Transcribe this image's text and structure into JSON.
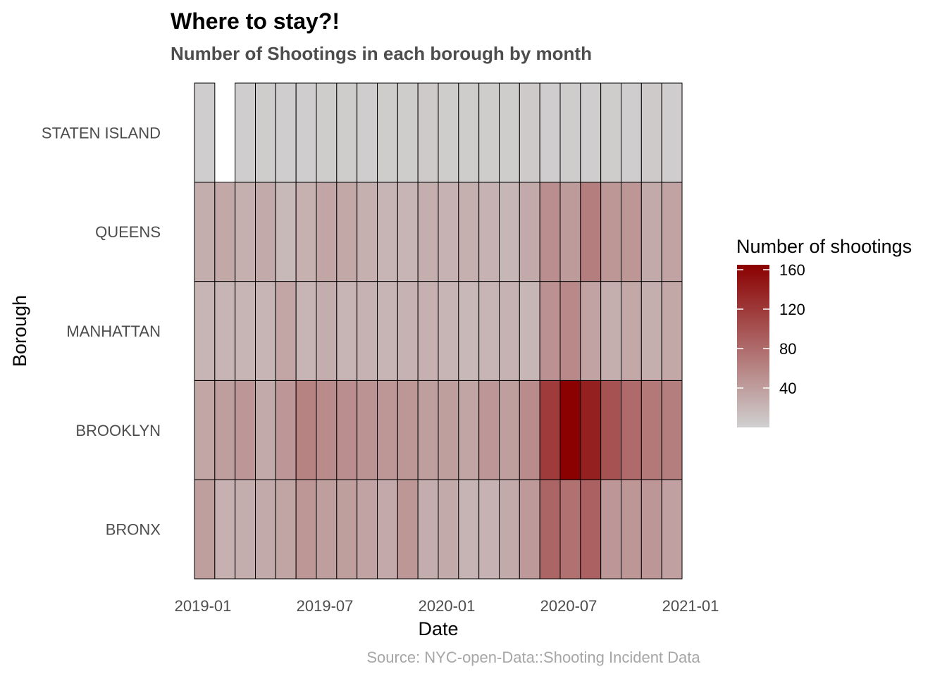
{
  "chart_data": {
    "type": "heatmap",
    "title": "Where to stay?!",
    "subtitle": "Number of Shootings in each borough by month",
    "xlabel": "Date",
    "ylabel": "Borough",
    "caption": "Source: NYC-open-Data::Shooting Incident Data",
    "x": [
      "2019-01",
      "2019-02",
      "2019-03",
      "2019-04",
      "2019-05",
      "2019-06",
      "2019-07",
      "2019-08",
      "2019-09",
      "2019-10",
      "2019-11",
      "2019-12",
      "2020-01",
      "2020-02",
      "2020-03",
      "2020-04",
      "2020-05",
      "2020-06",
      "2020-07",
      "2020-08",
      "2020-09",
      "2020-10",
      "2020-11",
      "2020-12"
    ],
    "x_ticks": [
      "2019-01",
      "2019-07",
      "2020-01",
      "2020-07",
      "2021-01"
    ],
    "y": [
      "BRONX",
      "BROOKLYN",
      "MANHATTAN",
      "QUEENS",
      "STATEN ISLAND"
    ],
    "values": {
      "STATEN ISLAND": [
        2,
        null,
        2,
        3,
        2,
        2,
        3,
        3,
        2,
        3,
        3,
        5,
        3,
        3,
        3,
        3,
        5,
        2,
        3,
        2,
        3,
        2,
        5,
        2
      ],
      "QUEENS": [
        28,
        32,
        26,
        30,
        18,
        25,
        34,
        32,
        26,
        22,
        22,
        27,
        24,
        26,
        24,
        21,
        30,
        52,
        42,
        65,
        46,
        46,
        30,
        36
      ],
      "MANHATTAN": [
        22,
        22,
        22,
        22,
        34,
        22,
        28,
        22,
        24,
        22,
        24,
        25,
        22,
        19,
        22,
        24,
        21,
        50,
        56,
        36,
        27,
        32,
        27,
        32
      ],
      "BROOKLYN": [
        34,
        40,
        45,
        30,
        45,
        62,
        55,
        52,
        48,
        46,
        46,
        40,
        40,
        35,
        45,
        40,
        55,
        118,
        165,
        140,
        100,
        80,
        70,
        65
      ],
      "BRONX": [
        40,
        25,
        28,
        30,
        35,
        46,
        40,
        40,
        36,
        31,
        46,
        28,
        30,
        23,
        24,
        30,
        44,
        85,
        75,
        88,
        45,
        46,
        45,
        38
      ]
    },
    "legend": {
      "title": "Number of shootings",
      "ticks": [
        40,
        80,
        120,
        160
      ],
      "range": [
        0,
        165
      ],
      "low_color": "#d0d0d0",
      "high_color": "#8b0000"
    },
    "grid": false,
    "legend_position": "right"
  }
}
